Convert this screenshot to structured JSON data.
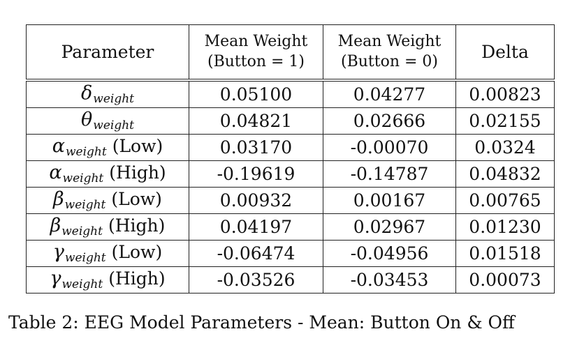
{
  "table": {
    "headers": [
      {
        "lines": [
          "Parameter"
        ]
      },
      {
        "lines": [
          "Mean Weight",
          "(Button = 1)"
        ]
      },
      {
        "lines": [
          "Mean Weight",
          "(Button = 0)"
        ]
      },
      {
        "lines": [
          "Delta"
        ]
      }
    ],
    "rows": [
      {
        "symbol": "δ",
        "sub": "weight",
        "qualifier": "",
        "values": [
          "0.05100",
          "0.04277",
          "0.00823"
        ]
      },
      {
        "symbol": "θ",
        "sub": "weight",
        "qualifier": "",
        "values": [
          "0.04821",
          "0.02666",
          "0.02155"
        ]
      },
      {
        "symbol": "α",
        "sub": "weight",
        "qualifier": "(Low)",
        "values": [
          "0.03170",
          "-0.00070",
          "0.0324"
        ]
      },
      {
        "symbol": "α",
        "sub": "weight",
        "qualifier": "(High)",
        "values": [
          "-0.19619",
          "-0.14787",
          "0.04832"
        ]
      },
      {
        "symbol": "β",
        "sub": "weight",
        "qualifier": "(Low)",
        "values": [
          "0.00932",
          "0.00167",
          "0.00765"
        ]
      },
      {
        "symbol": "β",
        "sub": "weight",
        "qualifier": "(High)",
        "values": [
          "0.04197",
          "0.02967",
          "0.01230"
        ]
      },
      {
        "symbol": "γ",
        "sub": "weight",
        "qualifier": "(Low)",
        "values": [
          "-0.06474",
          "-0.04956",
          "0.01518"
        ]
      },
      {
        "symbol": "γ",
        "sub": "weight",
        "qualifier": "(High)",
        "values": [
          "-0.03526",
          "-0.03453",
          "0.00073"
        ]
      }
    ]
  },
  "caption": "Table 2: EEG Model Parameters - Mean: Button On & Off"
}
